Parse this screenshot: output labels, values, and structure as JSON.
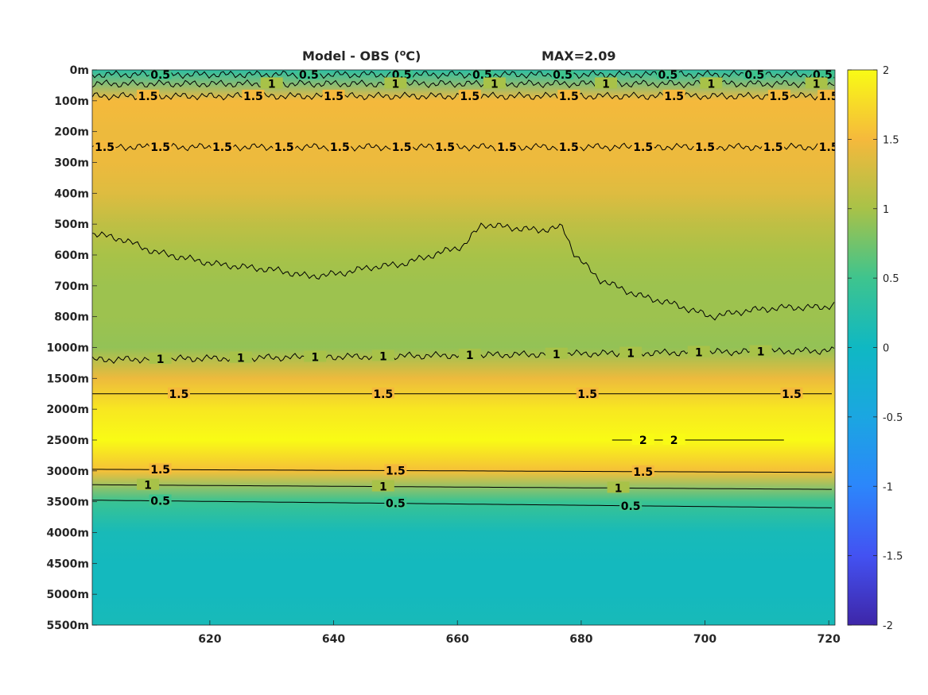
{
  "chart_data": {
    "type": "heatmap",
    "title": "Model - OBS (°C)",
    "title_parts": {
      "prefix": "Model - OBS (",
      "superscript": "o",
      "unit": "C)"
    },
    "annotation": "MAX=2.09",
    "x_ticks": [
      620,
      640,
      660,
      680,
      700,
      720
    ],
    "xlim": [
      601,
      721
    ],
    "y_tick_labels": [
      "0m",
      "100m",
      "200m",
      "300m",
      "400m",
      "500m",
      "600m",
      "700m",
      "800m",
      "1000m",
      "1500m",
      "2000m",
      "2500m",
      "3000m",
      "3500m",
      "4000m",
      "4500m",
      "5000m",
      "5500m"
    ],
    "y_reversed": true,
    "colorbar": {
      "ticks": [
        2,
        1.5,
        1,
        0.5,
        0,
        -0.5,
        -1,
        -1.5,
        -2
      ],
      "tick_labels": [
        "2",
        "1.5",
        "1",
        "0.5",
        "0",
        "-0.5",
        "-1",
        "-1.5",
        "-2"
      ],
      "clim": [
        -2,
        2
      ],
      "colormap": "parula"
    },
    "depth_profile": [
      {
        "depth_level": 0,
        "value": 0.3
      },
      {
        "depth_level": 1,
        "value": 1.5
      },
      {
        "depth_level": 2,
        "value": 1.45
      },
      {
        "depth_level": 3,
        "value": 1.45
      },
      {
        "depth_level": 4,
        "value": 1.35
      },
      {
        "depth_level": 5,
        "value": 1.15
      },
      {
        "depth_level": 6,
        "value": 1.0
      },
      {
        "depth_level": 7,
        "value": 0.95
      },
      {
        "depth_level": 8,
        "value": 0.95
      },
      {
        "depth_level": 9,
        "value": 0.9
      },
      {
        "depth_level": 10,
        "value": 1.45
      },
      {
        "depth_level": 11,
        "value": 1.85
      },
      {
        "depth_level": 12,
        "value": 2.0
      },
      {
        "depth_level": 13,
        "value": 1.55
      },
      {
        "depth_level": 14,
        "value": 0.45
      },
      {
        "depth_level": 15,
        "value": 0.1
      },
      {
        "depth_level": 16,
        "value": 0.05
      },
      {
        "depth_level": 17,
        "value": 0.05
      },
      {
        "depth_level": 18,
        "value": 0.1
      }
    ],
    "contours": [
      {
        "level": 0.5,
        "label": "0.5",
        "points": [
          [
            601,
            0.15
          ],
          [
            721,
            0.15
          ]
        ],
        "wavy": true,
        "label_x": [
          612,
          636,
          651,
          664,
          677,
          694,
          708,
          719
        ]
      },
      {
        "level": 1,
        "label": "1",
        "points": [
          [
            601,
            0.45
          ],
          [
            721,
            0.45
          ]
        ],
        "wavy": true,
        "label_x": [
          630,
          650,
          666,
          684,
          701,
          718
        ]
      },
      {
        "level": 1.5,
        "label": "1.5",
        "points": [
          [
            601,
            0.85
          ],
          [
            721,
            0.85
          ]
        ],
        "wavy": true,
        "label_x": [
          610,
          627,
          640,
          662,
          678,
          695,
          712,
          720
        ]
      },
      {
        "level": 1.5,
        "label": "1.5",
        "points": [
          [
            601,
            2.5
          ],
          [
            721,
            2.5
          ]
        ],
        "wavy": true,
        "label_x": [
          603,
          612,
          622,
          632,
          641,
          651,
          658,
          668,
          678,
          690,
          700,
          711,
          720
        ]
      },
      {
        "level": 1,
        "label": "1",
        "points": [
          [
            601,
            5.3
          ],
          [
            606,
            5.5
          ],
          [
            611,
            5.9
          ],
          [
            616,
            6.1
          ],
          [
            621,
            6.3
          ],
          [
            626,
            6.4
          ],
          [
            631,
            6.5
          ],
          [
            636,
            6.7
          ],
          [
            641,
            6.6
          ],
          [
            646,
            6.4
          ],
          [
            651,
            6.3
          ],
          [
            656,
            6.0
          ],
          [
            661,
            5.7
          ],
          [
            664,
            5.0
          ],
          [
            668,
            5.1
          ],
          [
            673,
            5.2
          ],
          [
            677,
            5.1
          ],
          [
            679,
            6.0
          ],
          [
            683,
            6.8
          ],
          [
            689,
            7.3
          ],
          [
            695,
            7.6
          ],
          [
            701,
            8.0
          ],
          [
            707,
            7.8
          ],
          [
            713,
            7.7
          ],
          [
            719,
            7.7
          ],
          [
            721,
            7.6
          ]
        ],
        "wavy": true,
        "label_x": []
      },
      {
        "level": 1,
        "label": "1",
        "points": [
          [
            601,
            9.4
          ],
          [
            721,
            9.1
          ]
        ],
        "wavy": true,
        "label_x": [
          612,
          625,
          637,
          648,
          662,
          676,
          688,
          699,
          709
        ]
      },
      {
        "level": 1.5,
        "label": "1.5",
        "points": [
          [
            601,
            10.5
          ],
          [
            721,
            10.5
          ]
        ],
        "wavy": false,
        "label_x": [
          615,
          648,
          681,
          714
        ]
      },
      {
        "level": 2,
        "label": "2",
        "points": [
          [
            685,
            12.0
          ],
          [
            713,
            12.0
          ]
        ],
        "wavy": false,
        "label_x": [
          690,
          695
        ]
      },
      {
        "level": 1.5,
        "label": "1.5",
        "points": [
          [
            601,
            12.95
          ],
          [
            721,
            13.05
          ]
        ],
        "wavy": false,
        "label_x": [
          612,
          650,
          690
        ]
      },
      {
        "level": 1,
        "label": "1",
        "points": [
          [
            601,
            13.45
          ],
          [
            721,
            13.6
          ]
        ],
        "wavy": false,
        "label_x": [
          610,
          648,
          686
        ]
      },
      {
        "level": 0.5,
        "label": "0.5",
        "points": [
          [
            601,
            13.95
          ],
          [
            721,
            14.2
          ]
        ],
        "wavy": false,
        "label_x": [
          612,
          650,
          688
        ]
      }
    ]
  }
}
